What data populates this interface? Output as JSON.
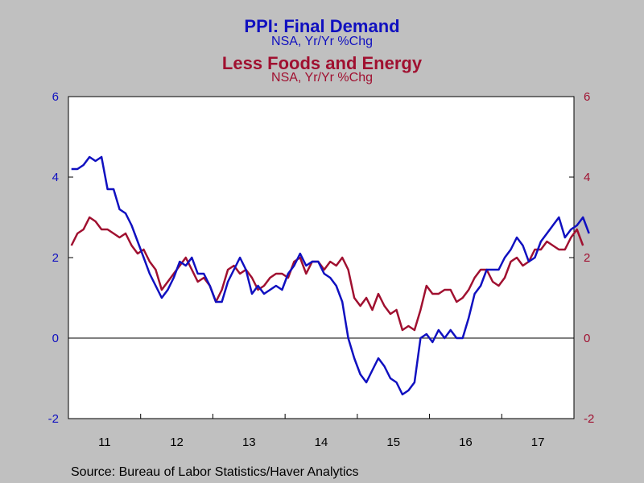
{
  "chart_data": {
    "type": "line",
    "title": "PPI: Final Demand",
    "subtitle": "NSA, Yr/Yr %Chg",
    "title2": "Less Foods and Energy",
    "subtitle2": "NSA, Yr/Yr %Chg",
    "source": "Source:  Bureau of Labor Statistics/Haver Analytics",
    "ylim": [
      -2,
      6
    ],
    "y_ticks": [
      -2,
      0,
      2,
      4,
      6
    ],
    "x_tick_labels": [
      "11",
      "12",
      "13",
      "14",
      "15",
      "16",
      "17"
    ],
    "x_start": "2011-01",
    "grid": false,
    "zero_line": true,
    "colors": {
      "final_demand": "#1010c0",
      "core": "#a01030"
    },
    "series": [
      {
        "name": "PPI: Final Demand",
        "values": [
          4.2,
          4.2,
          4.3,
          4.5,
          4.4,
          4.5,
          3.7,
          3.7,
          3.2,
          3.1,
          2.8,
          2.4,
          2.0,
          1.6,
          1.3,
          1.0,
          1.2,
          1.5,
          1.9,
          1.8,
          2.0,
          1.6,
          1.6,
          1.3,
          0.9,
          0.9,
          1.4,
          1.7,
          2.0,
          1.7,
          1.1,
          1.3,
          1.1,
          1.2,
          1.3,
          1.2,
          1.6,
          1.8,
          2.1,
          1.8,
          1.9,
          1.9,
          1.6,
          1.5,
          1.3,
          0.9,
          0.0,
          -0.5,
          -0.9,
          -1.1,
          -0.8,
          -0.5,
          -0.7,
          -1.0,
          -1.1,
          -1.4,
          -1.3,
          -1.1,
          0.0,
          0.1,
          -0.1,
          0.2,
          0.0,
          0.2,
          0.0,
          0.0,
          0.5,
          1.1,
          1.3,
          1.7,
          1.7,
          1.7,
          2.0,
          2.2,
          2.5,
          2.3,
          1.9,
          2.0,
          2.4,
          2.6,
          2.8,
          3.0,
          2.5,
          2.7,
          2.8,
          3.0,
          2.6
        ]
      },
      {
        "name": "Less Foods and Energy",
        "values": [
          2.3,
          2.6,
          2.7,
          3.0,
          2.9,
          2.7,
          2.7,
          2.6,
          2.5,
          2.6,
          2.3,
          2.1,
          2.2,
          1.9,
          1.7,
          1.2,
          1.4,
          1.6,
          1.8,
          2.0,
          1.7,
          1.4,
          1.5,
          1.3,
          0.9,
          1.2,
          1.7,
          1.8,
          1.6,
          1.7,
          1.5,
          1.2,
          1.3,
          1.5,
          1.6,
          1.6,
          1.5,
          1.9,
          2.0,
          1.6,
          1.9,
          1.9,
          1.7,
          1.9,
          1.8,
          2.0,
          1.7,
          1.0,
          0.8,
          1.0,
          0.7,
          1.1,
          0.8,
          0.6,
          0.7,
          0.2,
          0.3,
          0.2,
          0.7,
          1.3,
          1.1,
          1.1,
          1.2,
          1.2,
          0.9,
          1.0,
          1.2,
          1.5,
          1.7,
          1.7,
          1.4,
          1.3,
          1.5,
          1.9,
          2.0,
          1.8,
          1.9,
          2.2,
          2.2,
          2.4,
          2.3,
          2.2,
          2.2,
          2.5,
          2.7,
          2.3
        ]
      }
    ]
  }
}
